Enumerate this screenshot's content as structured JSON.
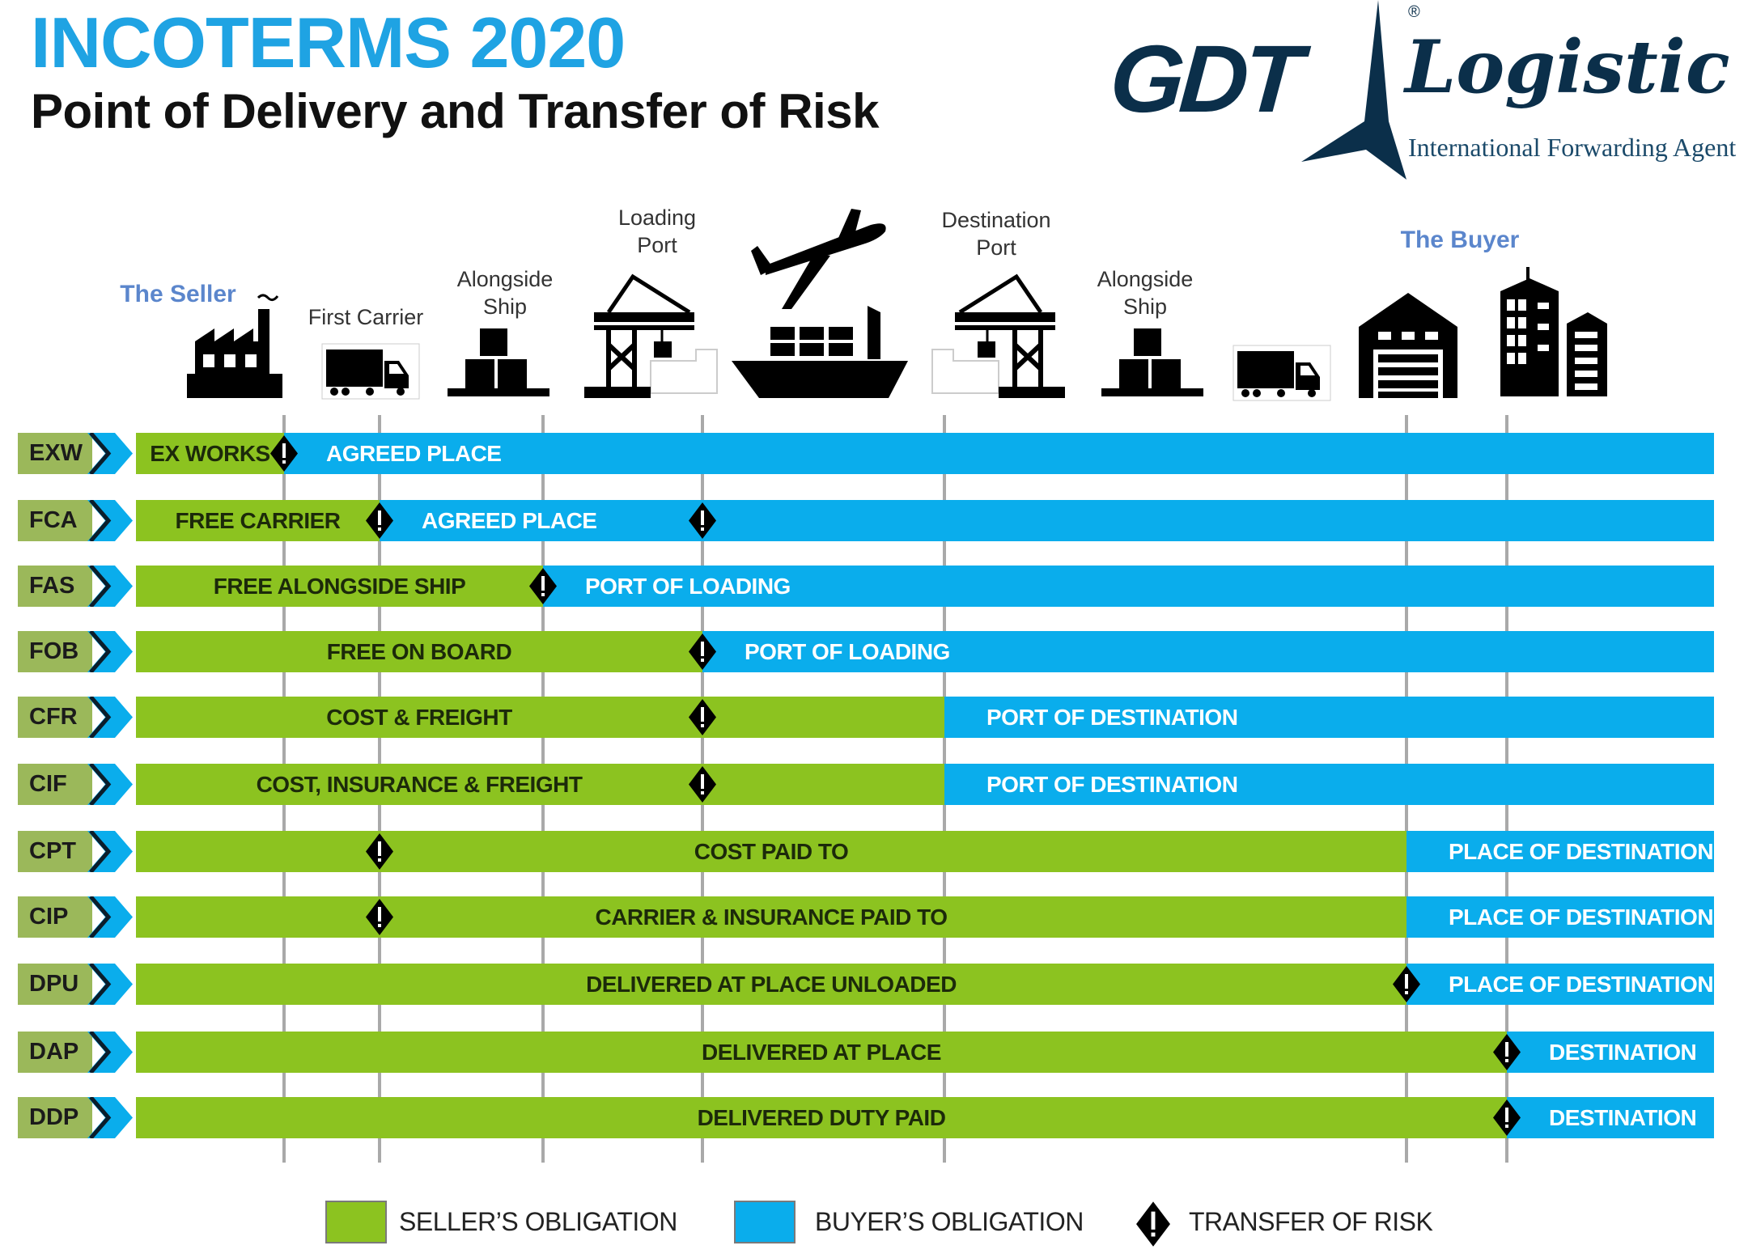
{
  "header": {
    "title": "INCOTERMS 2020",
    "subtitle": "Point of Delivery and Transfer of Risk"
  },
  "logo": {
    "brand": "GDT",
    "script": "Logistic",
    "tagline": "International Forwarding Agent",
    "registered": "®",
    "color": "#0b2f4a"
  },
  "colors": {
    "seller": "#8cc320",
    "buyer": "#0aadec",
    "code_block": "#9bb85a",
    "title": "#1fa3e3",
    "party_label": "#5b86cc"
  },
  "stages": {
    "seller": {
      "label": "The Seller",
      "icon": "factory-icon"
    },
    "first_carrier": {
      "label": "First Carrier",
      "icon": "truck-icon"
    },
    "alongside_ship_origin": {
      "label_1": "Alongside",
      "label_2": "Ship",
      "icon": "cargo-boxes-icon"
    },
    "loading_port": {
      "label_1": "Loading",
      "label_2": "Port",
      "icon": "port-crane-icon"
    },
    "transport": {
      "icons": [
        "airplane-icon",
        "container-ship-icon"
      ]
    },
    "destination_port": {
      "label_1": "Destination",
      "label_2": "Port",
      "icon": "port-crane-icon"
    },
    "alongside_ship_destination": {
      "label_1": "Alongside",
      "label_2": "Ship",
      "icon": "cargo-boxes-icon"
    },
    "final_truck": {
      "icon": "truck-icon"
    },
    "buyer": {
      "label": "The Buyer",
      "icons": [
        "warehouse-icon",
        "office-buildings-icon"
      ]
    }
  },
  "rows": [
    {
      "code": "EXW",
      "seller_text": "EX WORKS",
      "buyer_text": "AGREED PLACE",
      "buyer_from": "seller",
      "risk": [
        "seller"
      ]
    },
    {
      "code": "FCA",
      "seller_text": "FREE CARRIER",
      "buyer_text": "AGREED PLACE",
      "buyer_from": "first_carrier",
      "risk": [
        "first_carrier",
        "loading_port"
      ]
    },
    {
      "code": "FAS",
      "seller_text": "FREE ALONGSIDE SHIP",
      "buyer_text": "PORT OF LOADING",
      "buyer_from": "alongside_ship",
      "risk": [
        "alongside_ship"
      ]
    },
    {
      "code": "FOB",
      "seller_text": "FREE  ON BOARD",
      "buyer_text": "PORT OF LOADING",
      "buyer_from": "loading_port",
      "risk": [
        "loading_port"
      ]
    },
    {
      "code": "CFR",
      "seller_text": "COST & FREIGHT",
      "buyer_text": "PORT OF DESTINATION",
      "buyer_from": "destination_port",
      "risk": [
        "loading_port"
      ]
    },
    {
      "code": "CIF",
      "seller_text": "COST, INSURANCE & FREIGHT",
      "buyer_text": "PORT OF DESTINATION",
      "buyer_from": "destination_port",
      "risk": [
        "loading_port"
      ]
    },
    {
      "code": "CPT",
      "seller_text": "COST PAID TO",
      "buyer_text": "PLACE OF DESTINATION",
      "buyer_from": "buyer_warehouse",
      "risk": [
        "first_carrier"
      ]
    },
    {
      "code": "CIP",
      "seller_text": "CARRIER & INSURANCE PAID TO",
      "buyer_text": "PLACE OF DESTINATION",
      "buyer_from": "buyer_warehouse",
      "risk": [
        "first_carrier"
      ]
    },
    {
      "code": "DPU",
      "seller_text": "DELIVERED AT PLACE UNLOADED",
      "buyer_text": "PLACE OF DESTINATION",
      "buyer_from": "buyer_warehouse",
      "risk": [
        "buyer_warehouse"
      ]
    },
    {
      "code": "DAP",
      "seller_text": "DELIVERED AT PLACE",
      "buyer_text": "DESTINATION",
      "buyer_from": "buyer_premises",
      "risk": [
        "buyer_premises"
      ]
    },
    {
      "code": "DDP",
      "seller_text": "DELIVERED DUTY PAID",
      "buyer_text": "DESTINATION",
      "buyer_from": "buyer_premises",
      "risk": [
        "buyer_premises"
      ]
    }
  ],
  "legend": {
    "seller": "SELLER’S OBLIGATION",
    "buyer": "BUYER’S OBLIGATION",
    "risk": "TRANSFER OF RISK"
  }
}
